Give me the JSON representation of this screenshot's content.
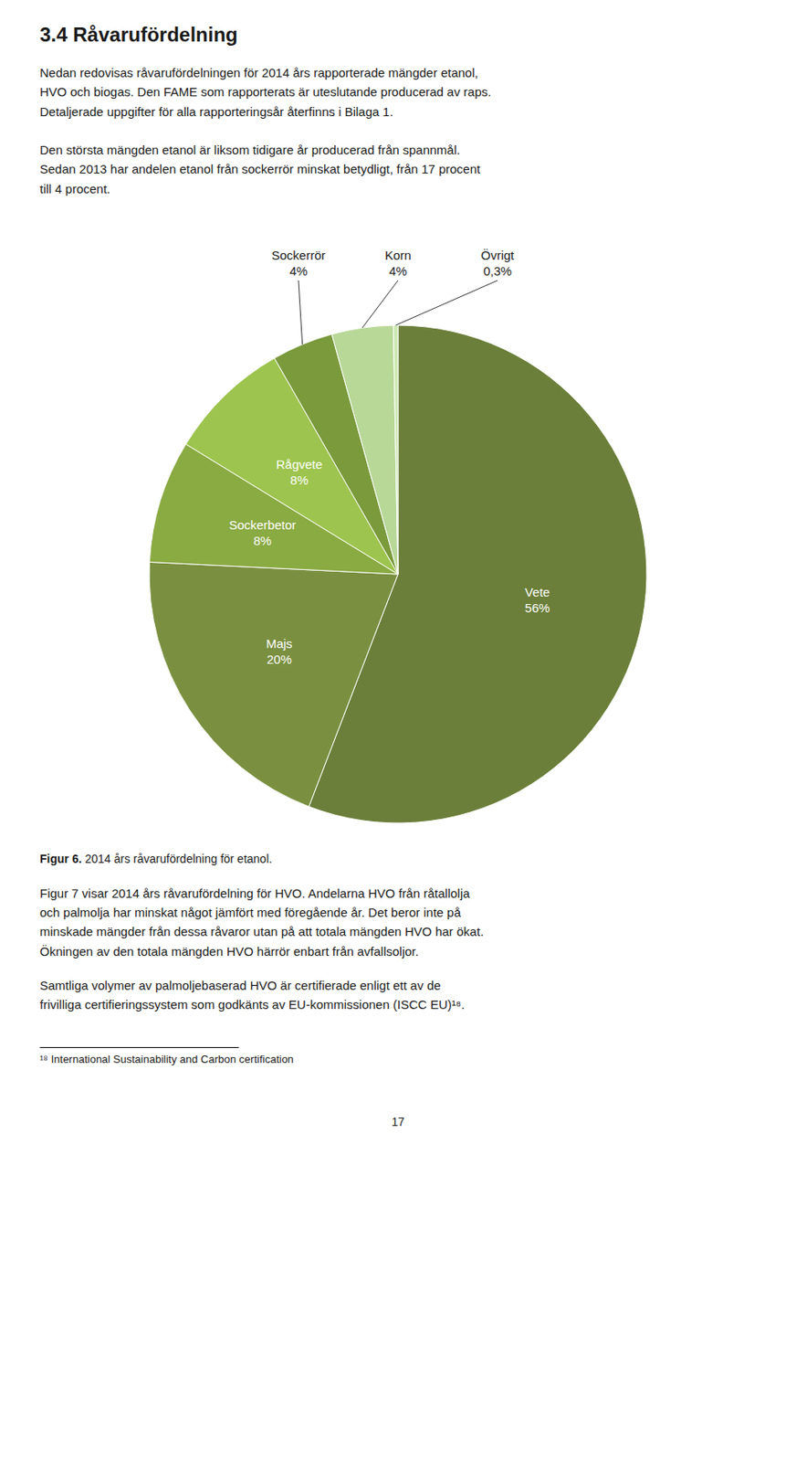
{
  "chart_data": {
    "type": "pie",
    "title": "3.4 Råvarufördelning",
    "subtitle": "Nedan redovisas råvarufördelningen för 2014 års rapporterade mängder etanol,\nHVO och biogas. Den FAME som rapporterats är uteslutande producerad av raps.\nDetaljerade uppgifter för alla rapporteringsår återfinns i Bilaga 1.\n\nDen största mängden etanol är liksom tidigare år producerad från spannmål.\nSedan 2013 har andelen etanol från sockerrör minskat betydligt, från 17 procent\ntill 4 procent.",
    "categories": [
      "Vete",
      "Majs",
      "Sockerbetor",
      "Rågvete",
      "Sockerrör",
      "Korn",
      "Övrigt"
    ],
    "values": [
      56,
      20,
      8,
      8,
      4,
      4,
      0.3
    ],
    "value_labels": [
      "56%",
      "20%",
      "8%",
      "8%",
      "4%",
      "4%",
      "0,3%"
    ],
    "colors": [
      "#6b7f3a",
      "#7a9040",
      "#8aaa42",
      "#9dc44e",
      "#7a9a3c",
      "#b8d898",
      "#cce8b0"
    ],
    "data_labels": true,
    "annotations": [
      "Figur 6.",
      " 2014 års råvarufördelning för etanol.",
      "Figur 7 visar 2014 års råvarufördelning för HVO. Andelarna HVO från råtallolja\noch palmolja har minskat något jämfört med föregående år. Det beror inte på\nminskade mängder från dessa råvaror utan på att totala mängden HVO har ökat.\nÖkningen av den totala mängden HVO härrör enbart från avfallsoljor.",
      "Samtliga volymer av palmoljebaserad HVO är certifierade enligt ett av de\nfrivilliga certifieringssystem som godkänts av EU-kommissionen (ISCC EU)¹⁸.",
      "¹⁸ International Sustainability and Carbon certification",
      "17"
    ]
  }
}
